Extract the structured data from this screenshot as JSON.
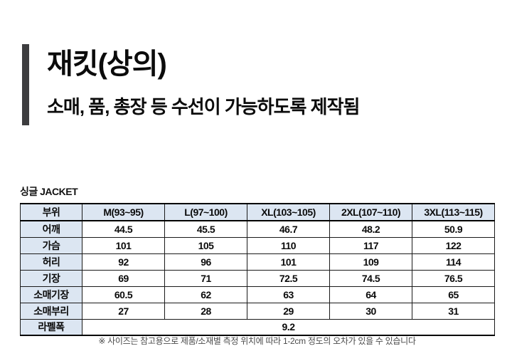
{
  "header": {
    "title": "재킷(상의)",
    "subtitle": "소매, 품, 총장 등 수선이 가능하도록 제작됨"
  },
  "table": {
    "caption": "싱글 JACKET",
    "columns": [
      "부위",
      "M(93~95)",
      "L(97~100)",
      "XL(103~105)",
      "2XL(107~110)",
      "3XL(113~115)"
    ],
    "rows": [
      {
        "label": "어깨",
        "values": [
          "44.5",
          "45.5",
          "46.7",
          "48.2",
          "50.9"
        ]
      },
      {
        "label": "가슴",
        "values": [
          "101",
          "105",
          "110",
          "117",
          "122"
        ]
      },
      {
        "label": "허리",
        "values": [
          "92",
          "96",
          "101",
          "109",
          "114"
        ]
      },
      {
        "label": "기장",
        "values": [
          "69",
          "71",
          "72.5",
          "74.5",
          "76.5"
        ]
      },
      {
        "label": "소매기장",
        "values": [
          "60.5",
          "62",
          "63",
          "64",
          "65"
        ]
      },
      {
        "label": "소매부리",
        "values": [
          "27",
          "28",
          "29",
          "30",
          "31"
        ]
      }
    ],
    "spanned_row": {
      "label": "라펠폭",
      "value": "9.2"
    }
  },
  "footnote": "※ 사이즈는 참고용으로 제품/소재별 측정 위치에 따라 1-2cm 정도의 오차가 있을 수 있습니다",
  "colors": {
    "accent_bar": "#3d3d3f",
    "table_header_bg": "#dce6f2",
    "table_border": "#000000"
  }
}
